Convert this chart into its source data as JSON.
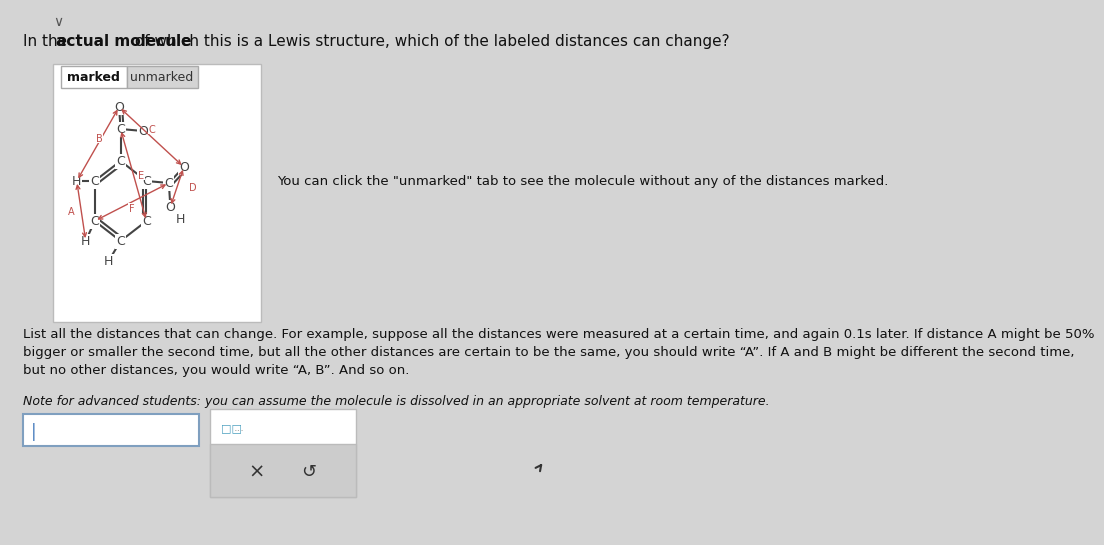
{
  "bg_color": "#d4d4d4",
  "panel_bg": "#ffffff",
  "title_text": "In the actual molecule of which this is a Lewis structure, which of the labeled distances can change?",
  "tab_marked": "marked",
  "tab_unmarked": "unmarked",
  "body_text1": "You can click the \"unmarked\" tab to see the molecule without any of the distances marked.",
  "body_text2": "List all the distances that can change. For example, suppose all the distances were measured at a certain time, and again 0.1s later. If distance A might be 50%\nbigger or smaller the second time, but all the other distances are certain to be the same, you should write “A”. If A and B might be different the second time,\nbut no other distances, you would write “A, B”. And so on.",
  "body_text3": "Note for advanced students: you can assume the molecule is dissolved in an appropriate solvent at room temperature.",
  "molecule_color": "#444444",
  "arrow_color": "#c0504d",
  "label_color": "#c0504d",
  "font_size_title": 11,
  "font_size_body": 9.5,
  "font_size_note": 9,
  "font_size_mol": 9
}
